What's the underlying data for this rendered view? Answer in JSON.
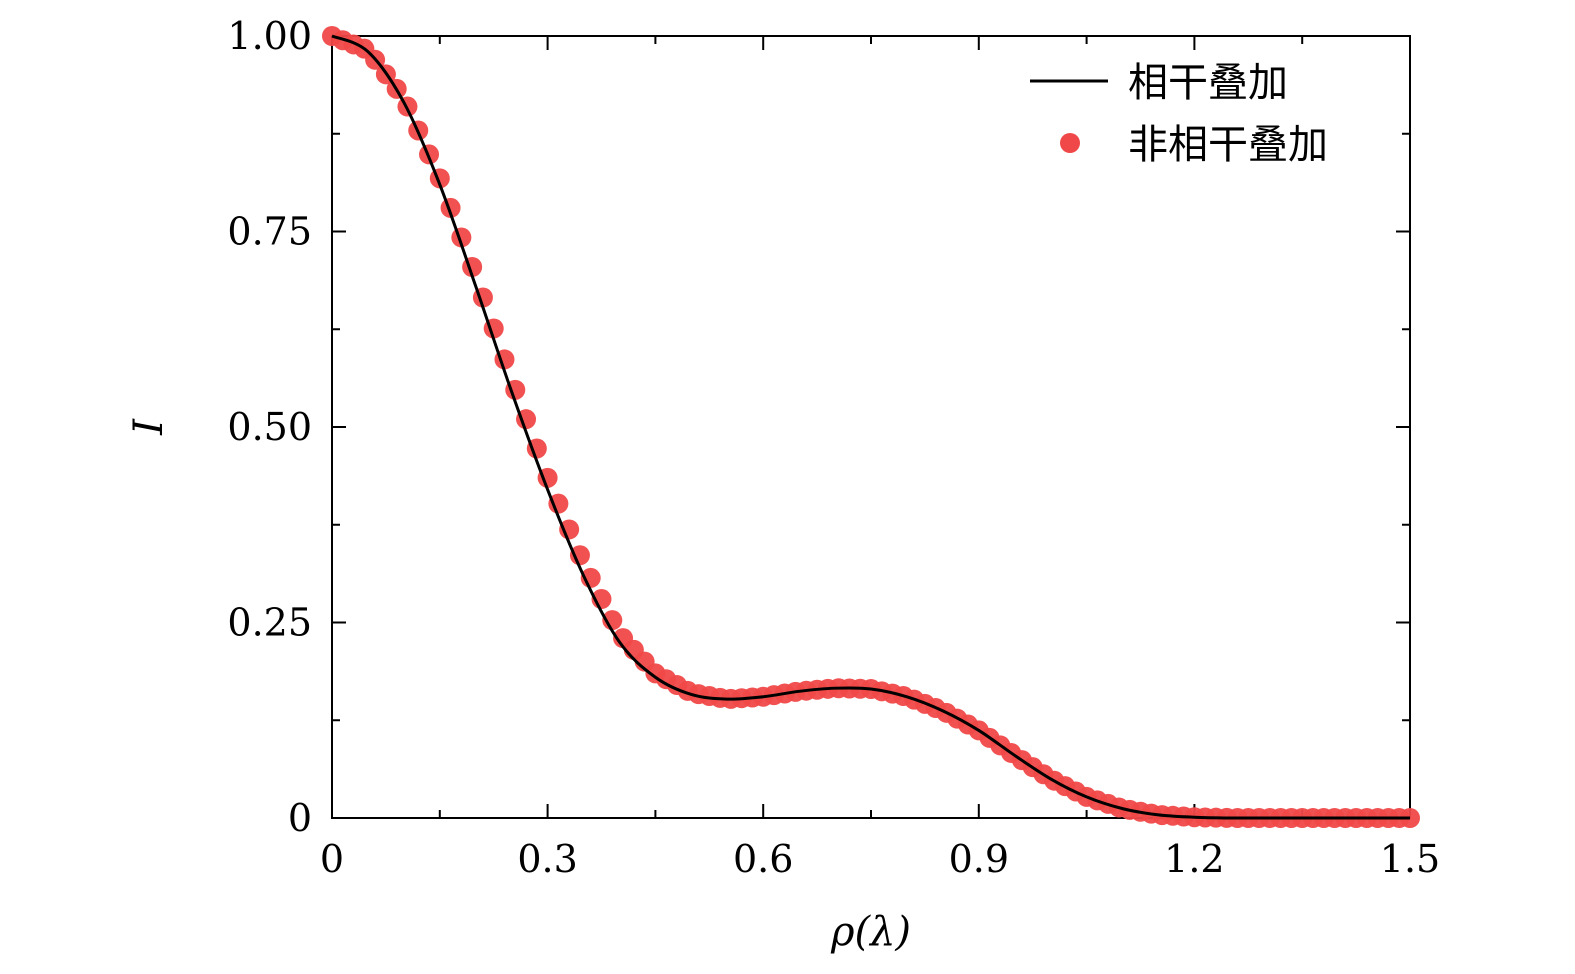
{
  "chart_data": {
    "type": "line",
    "xlabel": "ρ(λ)",
    "ylabel": "I",
    "xlim": [
      0,
      1.5
    ],
    "ylim": [
      0,
      1.0
    ],
    "x_ticks": [
      0,
      0.3,
      0.6,
      0.9,
      1.2,
      1.5
    ],
    "x_tick_labels": [
      "0",
      "0.3",
      "0.6",
      "0.9",
      "1.2",
      "1.5"
    ],
    "y_ticks": [
      0,
      0.25,
      0.5,
      0.75,
      1.0
    ],
    "y_tick_labels": [
      "0",
      "0.25",
      "0.50",
      "0.75",
      "1.00"
    ],
    "grid": false,
    "legend_position": "top-right",
    "series": [
      {
        "name": "相干叠加",
        "style": "line",
        "color": "#000000",
        "x": [
          0,
          0.05,
          0.1,
          0.15,
          0.2,
          0.25,
          0.3,
          0.35,
          0.4,
          0.45,
          0.5,
          0.55,
          0.6,
          0.65,
          0.7,
          0.75,
          0.8,
          0.85,
          0.9,
          0.95,
          1.0,
          1.05,
          1.1,
          1.15,
          1.2,
          1.25,
          1.3,
          1.35,
          1.4,
          1.45,
          1.5
        ],
        "y": [
          1.0,
          0.98,
          0.915,
          0.81,
          0.68,
          0.545,
          0.42,
          0.31,
          0.225,
          0.18,
          0.158,
          0.152,
          0.155,
          0.162,
          0.166,
          0.165,
          0.155,
          0.137,
          0.112,
          0.08,
          0.05,
          0.027,
          0.012,
          0.004,
          0.001,
          0.0,
          0.0,
          0.0,
          0.0,
          0.0,
          0.0
        ]
      },
      {
        "name": "非相干叠加",
        "style": "scatter",
        "color": "#f04848",
        "x": [
          0,
          0.05,
          0.1,
          0.15,
          0.2,
          0.25,
          0.3,
          0.35,
          0.4,
          0.45,
          0.5,
          0.55,
          0.6,
          0.65,
          0.7,
          0.75,
          0.8,
          0.85,
          0.9,
          0.95,
          1.0,
          1.05,
          1.1,
          1.15,
          1.2,
          1.25,
          1.3,
          1.35,
          1.4,
          1.45,
          1.5
        ],
        "y": [
          1.0,
          0.982,
          0.92,
          0.818,
          0.692,
          0.56,
          0.435,
          0.325,
          0.235,
          0.185,
          0.16,
          0.152,
          0.155,
          0.162,
          0.166,
          0.165,
          0.155,
          0.137,
          0.112,
          0.08,
          0.05,
          0.027,
          0.012,
          0.004,
          0.001,
          0.0,
          0.0,
          0.0,
          0.0,
          0.0,
          0.0
        ]
      }
    ]
  }
}
